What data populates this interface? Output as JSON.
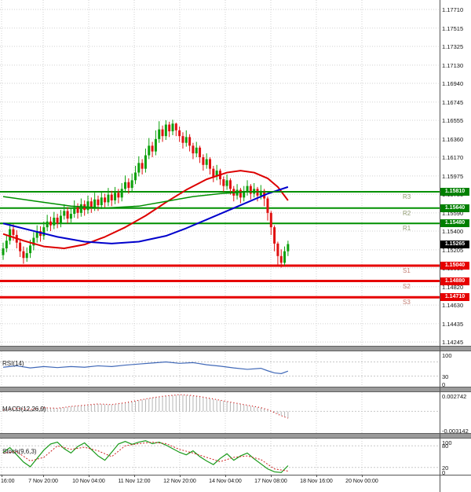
{
  "chart_data": {
    "type": "candlestick",
    "time_axis": {
      "labels": [
        "16:00",
        "7 Nov 20:00",
        "10 Nov 04:00",
        "11 Nov 12:00",
        "12 Nov 20:00",
        "14 Nov 04:00",
        "17 Nov 08:00",
        "18 Nov 16:00",
        "20 Nov 00:00"
      ]
    },
    "price_axis": {
      "ticks": [
        "1.17710",
        "1.17515",
        "1.17325",
        "1.17130",
        "1.16940",
        "1.16745",
        "1.16555",
        "1.16360",
        "1.16170",
        "1.15975",
        "1.15785",
        "1.15590",
        "1.15400",
        "1.15205",
        "1.15015",
        "1.14820",
        "1.14630",
        "1.14435",
        "1.14245"
      ],
      "current_price": {
        "label": "1.15265",
        "bg": "#000000"
      },
      "level_labels": [
        {
          "label": "1.15810",
          "bg": "#008000"
        },
        {
          "label": "1.15640",
          "bg": "#008000"
        },
        {
          "label": "1.15480",
          "bg": "#008000"
        },
        {
          "label": "1.15040",
          "bg": "#e60000"
        },
        {
          "label": "1.14880",
          "bg": "#e60000"
        },
        {
          "label": "1.14710",
          "bg": "#e60000"
        }
      ]
    },
    "levels": {
      "resistance": [
        {
          "name": "R3",
          "price": 1.1581
        },
        {
          "name": "R2",
          "price": 1.1564
        },
        {
          "name": "R1",
          "price": 1.1548
        }
      ],
      "support": [
        {
          "name": "S1",
          "price": 1.1504
        },
        {
          "name": "S2",
          "price": 1.1488
        },
        {
          "name": "S3",
          "price": 1.1471
        }
      ]
    },
    "colors": {
      "grid": "#d2d2d2",
      "candle_up": "#0ba00b",
      "candle_down": "#e01010",
      "resistance": "#009000",
      "support": "#e60000",
      "resistance_label": "#8f9a70",
      "support_label": "#c27d72"
    },
    "candles": [
      [
        1.1515,
        1.1528,
        1.151,
        1.1522
      ],
      [
        1.1522,
        1.1536,
        1.1518,
        1.153
      ],
      [
        1.153,
        1.1549,
        1.1526,
        1.1542
      ],
      [
        1.1542,
        1.1547,
        1.153,
        1.1536
      ],
      [
        1.1536,
        1.1541,
        1.1522,
        1.1528
      ],
      [
        1.1528,
        1.1532,
        1.1513,
        1.1519
      ],
      [
        1.1519,
        1.1524,
        1.1506,
        1.1512
      ],
      [
        1.1512,
        1.1523,
        1.1508,
        1.1517
      ],
      [
        1.1517,
        1.1531,
        1.1512,
        1.1525
      ],
      [
        1.1525,
        1.1539,
        1.152,
        1.1533
      ],
      [
        1.1533,
        1.1546,
        1.1528,
        1.154
      ],
      [
        1.154,
        1.1545,
        1.1529,
        1.1535
      ],
      [
        1.1535,
        1.155,
        1.1531,
        1.1544
      ],
      [
        1.1544,
        1.1557,
        1.154,
        1.155
      ],
      [
        1.155,
        1.1555,
        1.154,
        1.1546
      ],
      [
        1.1546,
        1.156,
        1.1542,
        1.1554
      ],
      [
        1.1554,
        1.1558,
        1.1543,
        1.1548
      ],
      [
        1.1548,
        1.1562,
        1.1544,
        1.1556
      ],
      [
        1.1556,
        1.1568,
        1.1552,
        1.1561
      ],
      [
        1.1561,
        1.1565,
        1.1548,
        1.1553
      ],
      [
        1.1553,
        1.1564,
        1.1549,
        1.1558
      ],
      [
        1.1558,
        1.1572,
        1.1554,
        1.1565
      ],
      [
        1.1565,
        1.1569,
        1.1553,
        1.1559
      ],
      [
        1.1559,
        1.1574,
        1.1555,
        1.1568
      ],
      [
        1.1568,
        1.1572,
        1.1556,
        1.1562
      ],
      [
        1.1562,
        1.1577,
        1.1558,
        1.1571
      ],
      [
        1.1571,
        1.1575,
        1.1559,
        1.1565
      ],
      [
        1.1565,
        1.158,
        1.1561,
        1.1573
      ],
      [
        1.1573,
        1.1577,
        1.1561,
        1.1567
      ],
      [
        1.1567,
        1.1581,
        1.1563,
        1.1575
      ],
      [
        1.1575,
        1.1579,
        1.1564,
        1.157
      ],
      [
        1.157,
        1.1585,
        1.1566,
        1.1578
      ],
      [
        1.1578,
        1.1582,
        1.1566,
        1.1572
      ],
      [
        1.1572,
        1.1586,
        1.1568,
        1.158
      ],
      [
        1.158,
        1.1584,
        1.1569,
        1.1575
      ],
      [
        1.1575,
        1.159,
        1.1571,
        1.1584
      ],
      [
        1.1584,
        1.1598,
        1.158,
        1.1591
      ],
      [
        1.1591,
        1.1595,
        1.1579,
        1.1585
      ],
      [
        1.1585,
        1.16,
        1.1581,
        1.1593
      ],
      [
        1.1593,
        1.1608,
        1.1589,
        1.1601
      ],
      [
        1.1601,
        1.1618,
        1.1597,
        1.1611
      ],
      [
        1.1611,
        1.1615,
        1.1599,
        1.1605
      ],
      [
        1.1605,
        1.1626,
        1.1601,
        1.1619
      ],
      [
        1.1619,
        1.1637,
        1.1615,
        1.1629
      ],
      [
        1.1629,
        1.1633,
        1.1617,
        1.1623
      ],
      [
        1.1623,
        1.1645,
        1.1619,
        1.1636
      ],
      [
        1.1636,
        1.16545,
        1.1632,
        1.1646
      ],
      [
        1.1646,
        1.165,
        1.1633,
        1.1639
      ],
      [
        1.1639,
        1.16555,
        1.1635,
        1.1651
      ],
      [
        1.1651,
        1.1654,
        1.1638,
        1.1644
      ],
      [
        1.1644,
        1.1656,
        1.164,
        1.1652
      ],
      [
        1.1652,
        1.1653,
        1.1639,
        1.1645
      ],
      [
        1.1645,
        1.1649,
        1.1633,
        1.1639
      ],
      [
        1.1639,
        1.1643,
        1.1626,
        1.1632
      ],
      [
        1.1632,
        1.1645,
        1.1628,
        1.1638
      ],
      [
        1.1638,
        1.1641,
        1.1623,
        1.1629
      ],
      [
        1.1629,
        1.1632,
        1.1615,
        1.1621
      ],
      [
        1.1621,
        1.1633,
        1.1617,
        1.1627
      ],
      [
        1.1627,
        1.1629,
        1.1611,
        1.1617
      ],
      [
        1.1617,
        1.162,
        1.1603,
        1.1609
      ],
      [
        1.1609,
        1.1621,
        1.1605,
        1.1615
      ],
      [
        1.1615,
        1.1617,
        1.1599,
        1.1605
      ],
      [
        1.1605,
        1.1608,
        1.1591,
        1.1597
      ],
      [
        1.1597,
        1.1609,
        1.1593,
        1.1603
      ],
      [
        1.1603,
        1.1605,
        1.1588,
        1.1594
      ],
      [
        1.1594,
        1.1597,
        1.1581,
        1.1587
      ],
      [
        1.1587,
        1.1599,
        1.1583,
        1.1593
      ],
      [
        1.1593,
        1.1595,
        1.1578,
        1.1584
      ],
      [
        1.1584,
        1.1587,
        1.1571,
        1.1577
      ],
      [
        1.1577,
        1.1589,
        1.1573,
        1.1583
      ],
      [
        1.1583,
        1.1585,
        1.1569,
        1.1575
      ],
      [
        1.1575,
        1.1587,
        1.1571,
        1.1581
      ],
      [
        1.1581,
        1.1593,
        1.1577,
        1.1587
      ],
      [
        1.1587,
        1.1589,
        1.1573,
        1.1579
      ],
      [
        1.1579,
        1.159,
        1.1575,
        1.1584
      ],
      [
        1.1584,
        1.1586,
        1.1571,
        1.1577
      ],
      [
        1.1577,
        1.1588,
        1.1573,
        1.1582
      ],
      [
        1.1582,
        1.1584,
        1.1566,
        1.1574
      ],
      [
        1.1574,
        1.1576,
        1.1551,
        1.1559
      ],
      [
        1.1559,
        1.1561,
        1.1536,
        1.1544
      ],
      [
        1.1544,
        1.1546,
        1.1519,
        1.1527
      ],
      [
        1.1527,
        1.1529,
        1.15035,
        1.1514
      ],
      [
        1.1514,
        1.1521,
        1.1502,
        1.1507
      ],
      [
        1.1507,
        1.1524,
        1.1504,
        1.1519
      ],
      [
        1.1519,
        1.153,
        1.1514,
        1.15265
      ]
    ],
    "ma_lines": [
      {
        "name": "red",
        "color": "#dd0000",
        "width": 2,
        "points": [
          [
            0,
            1.1537
          ],
          [
            6,
            1.153
          ],
          [
            12,
            1.1524
          ],
          [
            18,
            1.1522
          ],
          [
            24,
            1.1526
          ],
          [
            30,
            1.1534
          ],
          [
            36,
            1.1544
          ],
          [
            42,
            1.1556
          ],
          [
            48,
            1.157
          ],
          [
            54,
            1.1583
          ],
          [
            60,
            1.1594
          ],
          [
            66,
            1.1601
          ],
          [
            70,
            1.1603
          ],
          [
            74,
            1.1601
          ],
          [
            78,
            1.1595
          ],
          [
            81,
            1.1586
          ],
          [
            84,
            1.1572
          ]
        ]
      },
      {
        "name": "blue",
        "color": "#0000cc",
        "width": 2,
        "points": [
          [
            0,
            1.1548
          ],
          [
            8,
            1.1541
          ],
          [
            16,
            1.1534
          ],
          [
            24,
            1.1529
          ],
          [
            32,
            1.1527
          ],
          [
            40,
            1.1529
          ],
          [
            48,
            1.1535
          ],
          [
            54,
            1.1543
          ],
          [
            60,
            1.1552
          ],
          [
            66,
            1.1561
          ],
          [
            72,
            1.157
          ],
          [
            78,
            1.1579
          ],
          [
            84,
            1.1586
          ]
        ]
      },
      {
        "name": "green",
        "color": "#009000",
        "width": 1.5,
        "points": [
          [
            0,
            1.1576
          ],
          [
            10,
            1.1571
          ],
          [
            20,
            1.1566
          ],
          [
            30,
            1.1564
          ],
          [
            40,
            1.1566
          ],
          [
            48,
            1.1571
          ],
          [
            56,
            1.1576
          ],
          [
            64,
            1.1579
          ],
          [
            72,
            1.1581
          ],
          [
            84,
            1.1581
          ]
        ]
      }
    ],
    "indicators": {
      "rsi": {
        "title": "RSI(14)",
        "color": "#4169b8",
        "range": [
          100,
          0
        ],
        "levels": [
          30,
          70
        ],
        "scale": [
          {
            "label": "100",
            "v": 100
          },
          {
            "label": "30",
            "v": 30
          },
          {
            "label": "0",
            "v": 0
          }
        ],
        "points": [
          [
            0,
            55
          ],
          [
            4,
            59
          ],
          [
            8,
            53
          ],
          [
            12,
            57
          ],
          [
            16,
            54
          ],
          [
            20,
            57
          ],
          [
            24,
            55
          ],
          [
            28,
            59
          ],
          [
            32,
            57
          ],
          [
            36,
            61
          ],
          [
            40,
            64
          ],
          [
            44,
            67
          ],
          [
            48,
            70
          ],
          [
            52,
            66
          ],
          [
            56,
            68
          ],
          [
            60,
            62
          ],
          [
            64,
            58
          ],
          [
            68,
            53
          ],
          [
            72,
            49
          ],
          [
            76,
            52
          ],
          [
            78,
            45
          ],
          [
            80,
            39
          ],
          [
            82,
            37
          ],
          [
            84,
            44
          ]
        ]
      },
      "macd": {
        "title": "MACD(12,26,9)",
        "line_color": "#cc0000",
        "hist_color": "#b4b4b4",
        "range": [
          0.0031,
          -0.0035
        ],
        "scale": [
          {
            "label": "0.002742",
            "v": 0.002742
          },
          {
            "label": "-0.003142",
            "v": -0.003142
          }
        ],
        "points": [
          [
            0,
            0.0002
          ],
          [
            4,
            0.0005
          ],
          [
            8,
            0.0003
          ],
          [
            12,
            0.0006
          ],
          [
            16,
            0.0005
          ],
          [
            20,
            0.0008
          ],
          [
            24,
            0.001
          ],
          [
            28,
            0.0012
          ],
          [
            32,
            0.0011
          ],
          [
            36,
            0.0014
          ],
          [
            40,
            0.0018
          ],
          [
            44,
            0.0022
          ],
          [
            48,
            0.0025
          ],
          [
            52,
            0.0027
          ],
          [
            55,
            0.0026
          ],
          [
            58,
            0.0024
          ],
          [
            61,
            0.0021
          ],
          [
            64,
            0.0018
          ],
          [
            67,
            0.0015
          ],
          [
            70,
            0.0012
          ],
          [
            73,
            0.0009
          ],
          [
            76,
            0.0006
          ],
          [
            78,
            0.0003
          ],
          [
            80,
            -0.0002
          ],
          [
            82,
            -0.0007
          ],
          [
            84,
            -0.0011
          ]
        ]
      },
      "stoch": {
        "title": "Stoch(9,6,3)",
        "main_color": "#1a9a1a",
        "signal_color": "#cc2020",
        "range": [
          100,
          0
        ],
        "levels": [
          20,
          80
        ],
        "scale": [
          {
            "label": "100",
            "v": 100
          },
          {
            "label": "80",
            "v": 80
          },
          {
            "label": "20",
            "v": 20
          },
          {
            "label": "0",
            "v": 0
          }
        ],
        "main": [
          [
            0,
            62
          ],
          [
            2,
            75
          ],
          [
            4,
            55
          ],
          [
            6,
            35
          ],
          [
            8,
            22
          ],
          [
            10,
            45
          ],
          [
            12,
            68
          ],
          [
            14,
            85
          ],
          [
            16,
            90
          ],
          [
            18,
            72
          ],
          [
            20,
            60
          ],
          [
            22,
            78
          ],
          [
            24,
            88
          ],
          [
            26,
            70
          ],
          [
            28,
            52
          ],
          [
            30,
            40
          ],
          [
            32,
            62
          ],
          [
            34,
            85
          ],
          [
            36,
            92
          ],
          [
            38,
            84
          ],
          [
            40,
            90
          ],
          [
            42,
            94
          ],
          [
            44,
            86
          ],
          [
            46,
            90
          ],
          [
            48,
            82
          ],
          [
            50,
            72
          ],
          [
            52,
            62
          ],
          [
            54,
            55
          ],
          [
            56,
            66
          ],
          [
            58,
            50
          ],
          [
            60,
            38
          ],
          [
            62,
            28
          ],
          [
            64,
            45
          ],
          [
            66,
            58
          ],
          [
            68,
            40
          ],
          [
            70,
            52
          ],
          [
            72,
            60
          ],
          [
            74,
            44
          ],
          [
            76,
            30
          ],
          [
            78,
            16
          ],
          [
            80,
            8
          ],
          [
            82,
            6
          ],
          [
            84,
            25
          ]
        ],
        "signal": [
          [
            0,
            60
          ],
          [
            4,
            64
          ],
          [
            8,
            38
          ],
          [
            12,
            48
          ],
          [
            16,
            80
          ],
          [
            20,
            70
          ],
          [
            24,
            76
          ],
          [
            28,
            66
          ],
          [
            32,
            50
          ],
          [
            36,
            80
          ],
          [
            40,
            86
          ],
          [
            44,
            90
          ],
          [
            48,
            86
          ],
          [
            52,
            70
          ],
          [
            56,
            60
          ],
          [
            60,
            48
          ],
          [
            64,
            36
          ],
          [
            68,
            48
          ],
          [
            72,
            52
          ],
          [
            76,
            42
          ],
          [
            80,
            16
          ],
          [
            84,
            10
          ]
        ]
      }
    }
  }
}
